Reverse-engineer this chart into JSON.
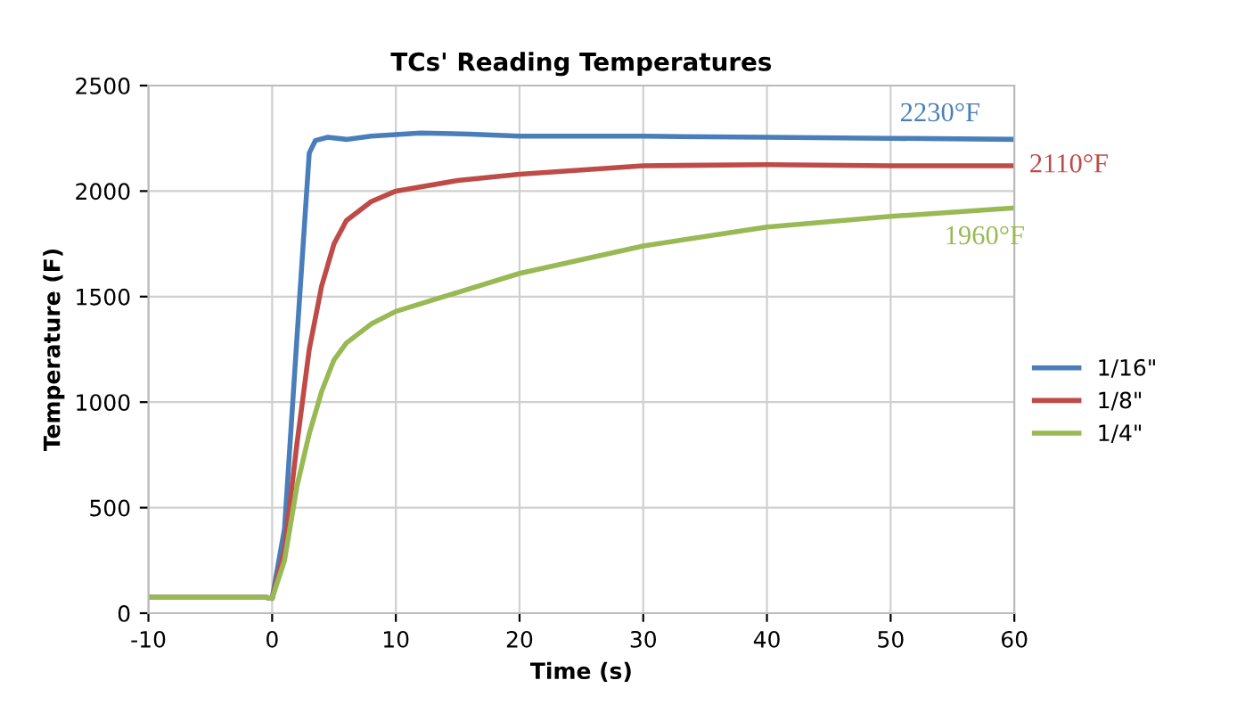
{
  "chart_data": {
    "type": "line",
    "title": "TCs' Reading Temperatures",
    "xlabel": "Time (s)",
    "ylabel": "Temperature (F)",
    "xlim": [
      -10,
      60
    ],
    "xticks": [
      -10,
      0,
      10,
      20,
      30,
      40,
      50,
      60
    ],
    "ylim": [
      0,
      2500
    ],
    "yticks": [
      0,
      500,
      1000,
      1500,
      2000,
      2500
    ],
    "grid": true,
    "legend": "right",
    "marker": "none",
    "line_style": "solid",
    "series": [
      {
        "name": "1/16\"",
        "color": "#4a7ebb",
        "x": [
          -10,
          -0.5,
          0,
          1,
          2,
          3,
          3.5,
          4.5,
          6,
          8,
          12,
          16,
          20,
          30,
          40,
          50,
          60
        ],
        "values": [
          75,
          75,
          70,
          400,
          1300,
          2180,
          2240,
          2255,
          2245,
          2260,
          2275,
          2270,
          2260,
          2260,
          2255,
          2250,
          2245
        ]
      },
      {
        "name": "1/8\"",
        "color": "#be4b48",
        "x": [
          -10,
          -0.5,
          0,
          1,
          2,
          3,
          4,
          5,
          6,
          8,
          10,
          15,
          20,
          25,
          30,
          40,
          50,
          60
        ],
        "values": [
          75,
          75,
          70,
          300,
          800,
          1250,
          1550,
          1750,
          1860,
          1950,
          2000,
          2050,
          2080,
          2100,
          2120,
          2125,
          2120,
          2120
        ]
      },
      {
        "name": "1/4\"",
        "color": "#98b954",
        "x": [
          -10,
          -0.5,
          0,
          1,
          2,
          3,
          4,
          5,
          6,
          8,
          10,
          15,
          20,
          30,
          40,
          50,
          60
        ],
        "values": [
          75,
          75,
          70,
          250,
          600,
          850,
          1050,
          1200,
          1280,
          1370,
          1430,
          1520,
          1610,
          1740,
          1830,
          1880,
          1920
        ]
      }
    ],
    "annotations": [
      "2230°F",
      "2110°F",
      "1960°F"
    ]
  }
}
